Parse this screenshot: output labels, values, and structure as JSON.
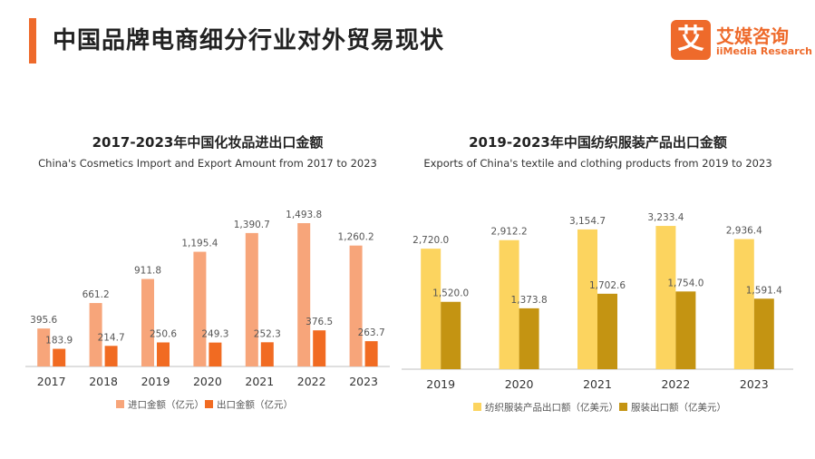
{
  "header": {
    "title": "中国品牌电商细分行业对外贸易现状",
    "logo_mark": "艾",
    "logo_cn": "艾媒咨询",
    "logo_en": "iiMedia Research"
  },
  "colors": {
    "accent": "#ee6a2b",
    "import_bar": "#f7a57a",
    "export_bar": "#f16b22",
    "textile_bar": "#fcd45f",
    "garment_bar": "#c49412"
  },
  "chart_data": [
    {
      "type": "bar",
      "title": "2017-2023年中国化妆品进出口金额",
      "subtitle": "China's Cosmetics Import and Export Amount from 2017 to 2023",
      "categories": [
        "2017",
        "2018",
        "2019",
        "2020",
        "2021",
        "2022",
        "2023"
      ],
      "series": [
        {
          "name": "进口金额（亿元）",
          "values": [
            395.6,
            661.2,
            911.8,
            1195.4,
            1390.7,
            1493.8,
            1260.2
          ]
        },
        {
          "name": "出口金额（亿元）",
          "values": [
            183.9,
            214.7,
            250.6,
            249.3,
            252.3,
            376.5,
            263.7
          ]
        }
      ],
      "value_labels": [
        [
          "395.6",
          "661.2",
          "911.8",
          "1,195.4",
          "1,390.7",
          "1,493.8",
          "1,260.2"
        ],
        [
          "183.9",
          "214.7",
          "250.6",
          "249.3",
          "252.3",
          "376.5",
          "263.7"
        ]
      ],
      "ylim": [
        0,
        1560
      ],
      "legend": "bottom",
      "grid": false
    },
    {
      "type": "bar",
      "title": "2019-2023年中国纺织服装产品出口金额",
      "subtitle": "Exports of China's textile and clothing products from 2019 to 2023",
      "categories": [
        "2019",
        "2020",
        "2021",
        "2022",
        "2023"
      ],
      "series": [
        {
          "name": "纺织服装产品出口额（亿美元）",
          "values": [
            2720.0,
            2912.2,
            3154.7,
            3233.4,
            2936.4
          ]
        },
        {
          "name": "服装出口额（亿美元）",
          "values": [
            1520.0,
            1373.8,
            1702.6,
            1754.0,
            1591.4
          ]
        }
      ],
      "value_labels": [
        [
          "2,720.0",
          "2,912.2",
          "3,154.7",
          "3,233.4",
          "2,936.4"
        ],
        [
          "1,520.0",
          "1,373.8",
          "1,702.6",
          "1,754.0",
          "1,591.4"
        ]
      ],
      "ylim": [
        0,
        3480
      ],
      "legend": "bottom",
      "grid": false
    }
  ]
}
